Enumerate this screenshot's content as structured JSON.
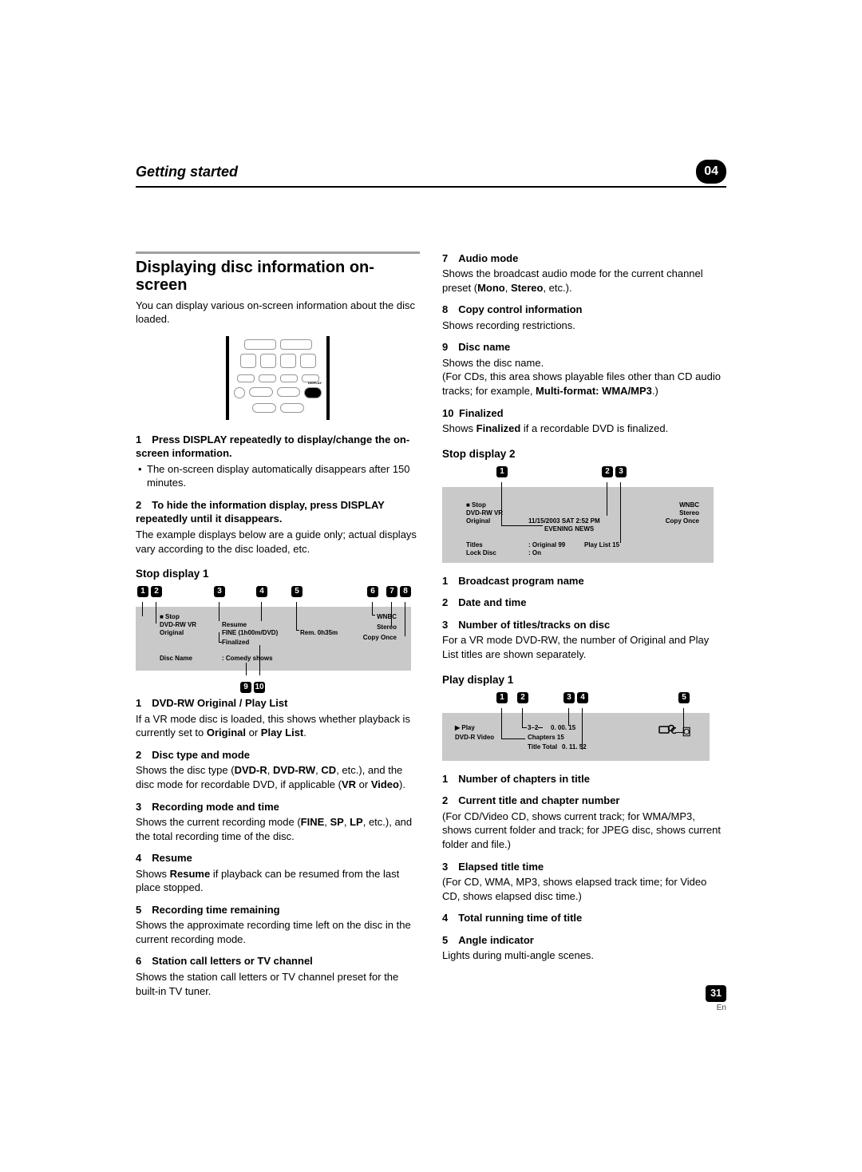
{
  "header": {
    "title": "Getting started",
    "chapter": "04"
  },
  "mainHeading": "Displaying disc information on-screen",
  "intro": "You can display various on-screen information about the disc loaded.",
  "steps": [
    {
      "lead": "1 Press DISPLAY repeatedly to display/change the on-screen information.",
      "bullet": "The on-screen display automatically disappears after 150 minutes."
    },
    {
      "lead": "2 To hide the information display, press DISPLAY repeatedly until it disappears.",
      "sub": "The example displays below are a guide only; actual displays vary according to the disc loaded, etc."
    }
  ],
  "stopDisplay1": {
    "heading": "Stop display 1",
    "callouts": [
      "1",
      "2",
      "3",
      "4",
      "5",
      "6",
      "7",
      "8",
      "9",
      "10"
    ],
    "osd": {
      "l1a": "■ Stop",
      "l1b": "DVD-RW  VR",
      "l1c": "Resume",
      "l1d": "WNBC",
      "l2a": "Original",
      "l2b": "FINE (1h00m/DVD)",
      "l2c": "Rem.   0h35m",
      "l2d": "Stereo",
      "l3": "Finalized",
      "l3b": "Copy Once",
      "l4a": "Disc Name",
      "l4b": ": Comedy shows"
    },
    "items": [
      {
        "lead": "1 DVD-RW Original / Play List",
        "body": "If a VR mode disc is loaded, this shows whether playback is currently set to <b>Original</b> or <b>Play List</b>."
      },
      {
        "lead": "2 Disc type and mode",
        "body": "Shows the disc type (<b>DVD-R</b>, <b>DVD-RW</b>, <b>CD</b>, etc.), and the disc mode for recordable DVD, if applicable (<b>VR</b> or <b>Video</b>)."
      },
      {
        "lead": "3 Recording mode and time",
        "body": "Shows the current recording mode (<b>FINE</b>, <b>SP</b>, <b>LP</b>, etc.), and the total recording time of the disc."
      },
      {
        "lead": "4 Resume",
        "body": "Shows <b>Resume</b> if playback can be resumed from the last place stopped."
      },
      {
        "lead": "5 Recording time remaining",
        "body": "Shows the approximate recording time left on the disc in the current recording mode."
      },
      {
        "lead": "6 Station call letters or TV channel",
        "body": "Shows the station call letters or TV channel preset for the built-in TV tuner."
      }
    ],
    "itemsRight": [
      {
        "lead": "7 Audio mode",
        "body": "Shows the broadcast audio mode for the current channel preset (<b>Mono</b>, <b>Stereo</b>, etc.)."
      },
      {
        "lead": "8 Copy control information",
        "body": "Shows recording restrictions."
      },
      {
        "lead": "9 Disc name",
        "body": "Shows the disc name.<br>(For CDs, this area shows playable files other than CD audio tracks; for example, <b>Multi-format: WMA/MP3</b>.)"
      },
      {
        "lead": "10 Finalized",
        "body": "Shows <b>Finalized</b> if a recordable DVD is finalized."
      }
    ]
  },
  "stopDisplay2": {
    "heading": "Stop display 2",
    "callouts": [
      "1",
      "2",
      "3"
    ],
    "osd": {
      "l1a": "■ Stop",
      "l1b": "DVD-RW  VR",
      "l1c": "WNBC",
      "l2a": "Original",
      "l2b": "11/15/2003  SAT  2:52 PM",
      "l2c": "Stereo",
      "l3": "EVENING NEWS",
      "l3b": "Copy Once",
      "l4a": "Titles",
      "l4b": ": Original  99",
      "l4c": "Play List  15",
      "l5a": "Lock Disc",
      "l5b": ": On"
    },
    "items": [
      {
        "lead": "1 Broadcast program name",
        "body": ""
      },
      {
        "lead": "2 Date and time",
        "body": ""
      },
      {
        "lead": "3 Number of titles/tracks on disc",
        "body": "For a VR mode DVD-RW, the number of Original and Play List titles are shown separately."
      }
    ]
  },
  "playDisplay1": {
    "heading": "Play display 1",
    "callouts": [
      "1",
      "2",
      "3",
      "4",
      "5"
    ],
    "osd": {
      "l1a": "▶ Play",
      "l1b": "3–2",
      "l1c": "0. 00. 15",
      "l2a": "DVD-R  Video",
      "l2b": "Chapters  15",
      "l3a": "Title Total",
      "l3b": "0. 11. 52"
    },
    "items": [
      {
        "lead": "1 Number of chapters in title",
        "body": ""
      },
      {
        "lead": "2 Current title and chapter number",
        "body": "(For CD/Video CD, shows current track; for WMA/MP3, shows current folder and track; for JPEG disc, shows current folder and file.)"
      },
      {
        "lead": "3 Elapsed title time",
        "body": "(For CD, WMA, MP3, shows elapsed track time; for Video CD, shows elapsed disc time.)"
      },
      {
        "lead": "4 Total running time of title",
        "body": ""
      },
      {
        "lead": "5 Angle indicator",
        "body": "Lights during multi-angle scenes."
      }
    ]
  },
  "footer": {
    "page": "31",
    "lang": "En"
  },
  "style": {
    "osd_bg": "#c9c9c9",
    "text_color": "#000000",
    "callout_bg": "#000000",
    "callout_fg": "#ffffff"
  }
}
